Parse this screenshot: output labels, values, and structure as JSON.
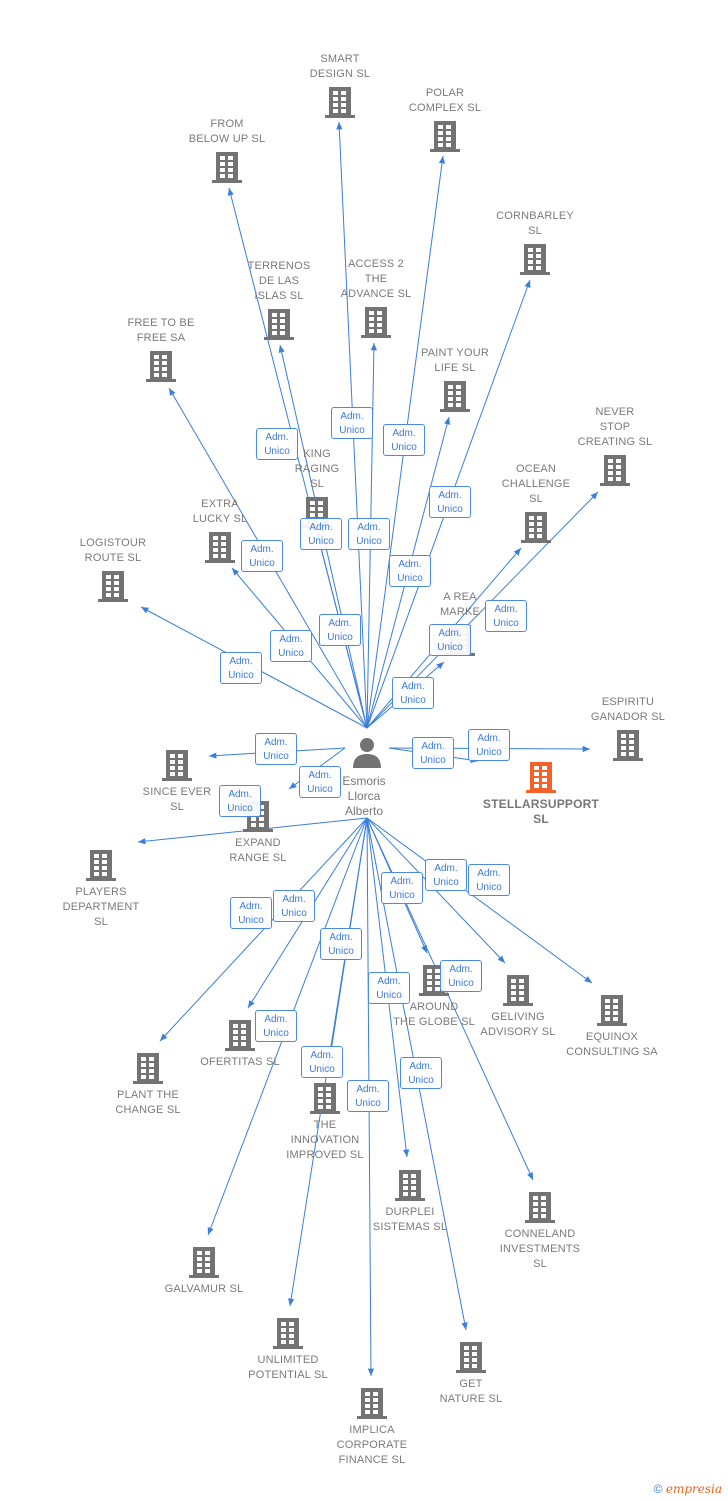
{
  "person": {
    "name_lines": [
      "Esmoris",
      "Llorca",
      "Alberto"
    ],
    "icon": "person-icon"
  },
  "relation_label": [
    "Adm.",
    "Unico"
  ],
  "colors": {
    "edge": "#3a7fd9",
    "building": "#737373",
    "highlight": "#f4622c",
    "label": "#7a7a7a"
  },
  "companies": [
    {
      "lines": [
        "SMART",
        "DESIGN  SL"
      ]
    },
    {
      "lines": [
        "POLAR",
        "COMPLEX  SL"
      ]
    },
    {
      "lines": [
        "FROM",
        "BELOW UP  SL"
      ]
    },
    {
      "lines": [
        "CORNBARLEY",
        "SL"
      ]
    },
    {
      "lines": [
        "TERRENOS",
        "DE LAS",
        "ISLAS  SL"
      ]
    },
    {
      "lines": [
        "ACCESS 2",
        "THE",
        "ADVANCE  SL"
      ]
    },
    {
      "lines": [
        "FREE TO BE",
        "FREE SA"
      ]
    },
    {
      "lines": [
        "PAINT YOUR",
        "LIFE  SL"
      ]
    },
    {
      "lines": [
        "NEVER",
        "STOP",
        "CREATING  SL"
      ]
    },
    {
      "lines": [
        "OCEAN",
        "CHALLENGE",
        "SL"
      ]
    },
    {
      "lines": [
        "KING",
        "RAGING",
        "SL"
      ]
    },
    {
      "lines": [
        "EXTRA",
        "LUCKY  SL"
      ]
    },
    {
      "lines": [
        "LOGISTOUR",
        "ROUTE  SL"
      ]
    },
    {
      "lines": [
        "A REA",
        "MARKE"
      ]
    },
    {
      "lines": [
        "ESPIRITU",
        "GANADOR SL"
      ]
    },
    {
      "lines": [
        "STELLARSUPPORT",
        "SL"
      ],
      "main": true
    },
    {
      "lines": [
        "SINCE EVER",
        "SL"
      ]
    },
    {
      "lines": [
        "EXPAND",
        "RANGE  SL"
      ]
    },
    {
      "lines": [
        "PLAYERS",
        "DEPARTMENT",
        "SL"
      ]
    },
    {
      "lines": [
        "AROUND",
        "THE GLOBE  SL"
      ]
    },
    {
      "lines": [
        "GELIVING",
        "ADVISORY  SL"
      ]
    },
    {
      "lines": [
        "EQUINOX",
        "CONSULTING SA"
      ]
    },
    {
      "lines": [
        "OFERTITAS  SL"
      ]
    },
    {
      "lines": [
        "PLANT THE",
        "CHANGE  SL"
      ]
    },
    {
      "lines": [
        "THE",
        "INNOVATION",
        "IMPROVED  SL"
      ]
    },
    {
      "lines": [
        "DURPLEI",
        "SISTEMAS  SL"
      ]
    },
    {
      "lines": [
        "CONNELAND",
        "INVESTMENTS",
        "SL"
      ]
    },
    {
      "lines": [
        "GALVAMUR  SL"
      ]
    },
    {
      "lines": [
        "UNLIMITED",
        "POTENTIAL  SL"
      ]
    },
    {
      "lines": [
        "GET",
        "NATURE  SL"
      ]
    },
    {
      "lines": [
        "IMPLICA",
        "CORPORATE",
        "FINANCE  SL"
      ]
    }
  ],
  "footer": {
    "copyright": "©",
    "brand": "empresia"
  }
}
